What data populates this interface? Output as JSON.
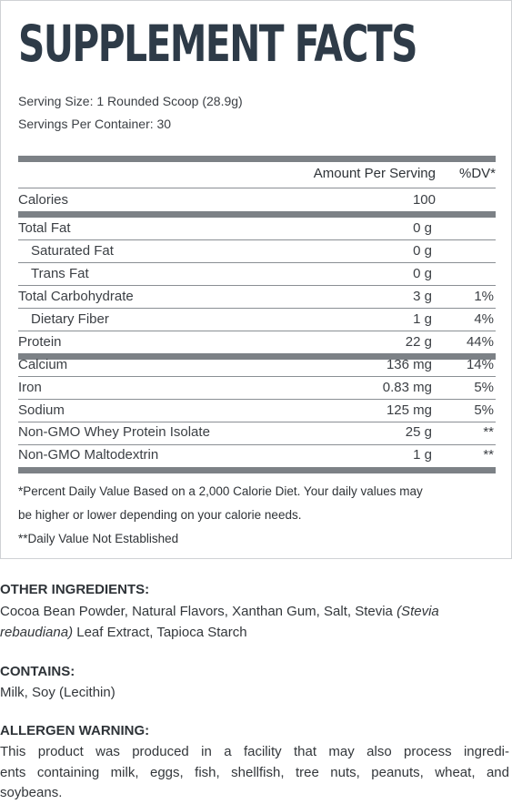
{
  "panel": {
    "title": "SUPPLEMENT FACTS",
    "serving_size": "Serving Size: 1 Rounded Scoop (28.9g)",
    "servings_per_container": "Servings Per Container: 30",
    "header": {
      "amount": "Amount Per Serving",
      "dv": "%DV*"
    },
    "rows": [
      {
        "name": "Calories",
        "amount": "100",
        "dv": ""
      },
      {
        "name": "Total Fat",
        "amount": "0 g",
        "dv": ""
      },
      {
        "name": "Saturated Fat",
        "amount": "0 g",
        "dv": ""
      },
      {
        "name": "Trans Fat",
        "amount": "0 g",
        "dv": ""
      },
      {
        "name": "Total Carbohydrate",
        "amount": "3 g",
        "dv": "1%"
      },
      {
        "name": "Dietary Fiber",
        "amount": "1 g",
        "dv": "4%"
      },
      {
        "name": "Protein",
        "amount": "22 g",
        "dv": "44%"
      },
      {
        "name": "Calcium",
        "amount": "136 mg",
        "dv": "14%"
      },
      {
        "name": "Iron",
        "amount": "0.83 mg",
        "dv": "5%"
      },
      {
        "name": "Sodium",
        "amount": "125 mg",
        "dv": "5%"
      },
      {
        "name": "Non-GMO Whey Protein Isolate",
        "amount": "25 g",
        "dv": "**"
      },
      {
        "name": "Non-GMO Maltodextrin",
        "amount": "1 g",
        "dv": "**"
      }
    ],
    "footnote_line1": "*Percent Daily Value Based on a 2,000 Calorie Diet. Your daily values may",
    "footnote_line2": "be higher or lower depending on your calorie needs.",
    "footnote_line3": "**Daily Value Not Established"
  },
  "other_ingredients": {
    "heading": "OTHER INGREDIENTS:",
    "line1_a": "Cocoa Bean Powder, Natural Flavors, Xanthan Gum, Salt, Stevia ",
    "line1_b": "(Stevia",
    "line2_a": "rebaudiana)",
    "line2_b": " Leaf Extract, Tapioca Starch"
  },
  "contains": {
    "heading": "CONTAINS:",
    "text": "Milk, Soy (Lecithin)"
  },
  "allergen_warning": {
    "heading": "ALLERGEN WARNING:",
    "line1": "This product was produced in a facility that may also process ingredi-",
    "line2": "ents containing milk, eggs, fish, shellfish, tree nuts, peanuts, wheat, and",
    "line3": "soybeans."
  }
}
